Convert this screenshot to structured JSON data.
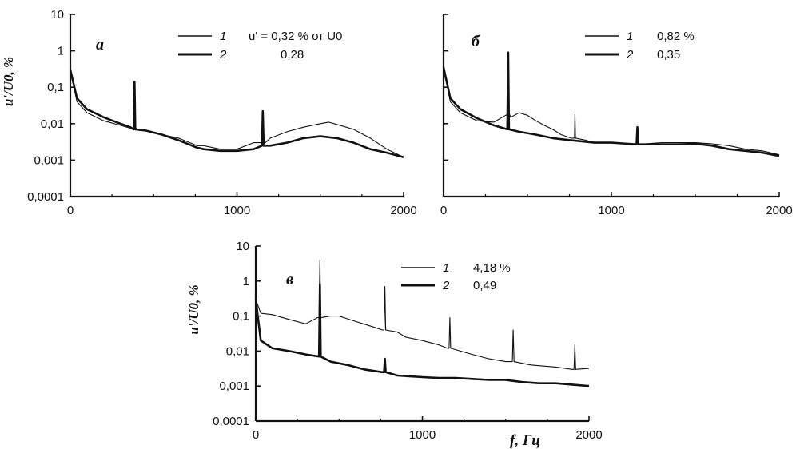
{
  "chart_data": [
    {
      "type": "line",
      "panel": "a",
      "xlim": [
        0,
        2000
      ],
      "ylim": [
        0.0001,
        10
      ],
      "yscale": "log",
      "xticks": [
        "0",
        "1000",
        "2000"
      ],
      "yticks": [
        "10",
        "1",
        "0,1",
        "0,01",
        "0,001",
        "0,0001"
      ],
      "ylabel": "u'/U0, %",
      "xlabel": "",
      "legend": {
        "header": "u' = 0,32 % от U0",
        "rows": [
          {
            "num": "1",
            "value": "u' = 0,32 % от U0"
          },
          {
            "num": "2",
            "value": "0,28"
          }
        ]
      },
      "series": [
        {
          "name": "1",
          "width": "thin",
          "points": [
            [
              0,
              0.3
            ],
            [
              40,
              0.04
            ],
            [
              100,
              0.02
            ],
            [
              200,
              0.012
            ],
            [
              300,
              0.009
            ],
            [
              360,
              0.0075
            ],
            [
              380,
              0.007
            ],
            [
              390,
              0.008
            ],
            [
              400,
              0.007
            ],
            [
              450,
              0.0065
            ],
            [
              550,
              0.005
            ],
            [
              650,
              0.004
            ],
            [
              760,
              0.0025
            ],
            [
              800,
              0.0025
            ],
            [
              900,
              0.002
            ],
            [
              1000,
              0.002
            ],
            [
              1100,
              0.003
            ],
            [
              1150,
              0.003
            ],
            [
              1170,
              0.003
            ],
            [
              1200,
              0.004
            ],
            [
              1300,
              0.006
            ],
            [
              1400,
              0.008
            ],
            [
              1500,
              0.01
            ],
            [
              1550,
              0.011
            ],
            [
              1600,
              0.0095
            ],
            [
              1700,
              0.007
            ],
            [
              1800,
              0.004
            ],
            [
              1900,
              0.002
            ],
            [
              2000,
              0.0012
            ]
          ]
        },
        {
          "name": "2",
          "width": "thick",
          "points": [
            [
              0,
              0.3
            ],
            [
              40,
              0.05
            ],
            [
              100,
              0.025
            ],
            [
              200,
              0.015
            ],
            [
              300,
              0.01
            ],
            [
              360,
              0.008
            ],
            [
              380,
              0.007
            ],
            [
              385,
              0.14
            ],
            [
              390,
              0.007
            ],
            [
              450,
              0.0065
            ],
            [
              550,
              0.005
            ],
            [
              650,
              0.0035
            ],
            [
              760,
              0.0022
            ],
            [
              800,
              0.002
            ],
            [
              900,
              0.0018
            ],
            [
              1000,
              0.0018
            ],
            [
              1100,
              0.002
            ],
            [
              1150,
              0.0025
            ],
            [
              1155,
              0.022
            ],
            [
              1160,
              0.0025
            ],
            [
              1200,
              0.0025
            ],
            [
              1300,
              0.003
            ],
            [
              1400,
              0.004
            ],
            [
              1500,
              0.0045
            ],
            [
              1600,
              0.004
            ],
            [
              1700,
              0.003
            ],
            [
              1800,
              0.002
            ],
            [
              1900,
              0.0016
            ],
            [
              2000,
              0.0012
            ]
          ]
        }
      ]
    },
    {
      "type": "line",
      "panel": "б",
      "xlim": [
        0,
        2000
      ],
      "ylim": [
        0.0001,
        10
      ],
      "yscale": "log",
      "xticks": [
        "0",
        "1000",
        "2000"
      ],
      "yticks": [],
      "ylabel": "",
      "xlabel": "",
      "legend": {
        "rows": [
          {
            "num": "1",
            "value": "0,82 %"
          },
          {
            "num": "2",
            "value": "0,35"
          }
        ]
      },
      "series": [
        {
          "name": "1",
          "width": "thin",
          "points": [
            [
              0,
              0.35
            ],
            [
              40,
              0.04
            ],
            [
              100,
              0.02
            ],
            [
              200,
              0.012
            ],
            [
              300,
              0.011
            ],
            [
              350,
              0.015
            ],
            [
              380,
              0.018
            ],
            [
              390,
              0.02
            ],
            [
              400,
              0.015
            ],
            [
              450,
              0.02
            ],
            [
              500,
              0.017
            ],
            [
              550,
              0.012
            ],
            [
              600,
              0.009
            ],
            [
              650,
              0.007
            ],
            [
              700,
              0.005
            ],
            [
              760,
              0.004
            ],
            [
              780,
              0.004
            ],
            [
              783,
              0.018
            ],
            [
              786,
              0.004
            ],
            [
              850,
              0.0035
            ],
            [
              900,
              0.003
            ],
            [
              1000,
              0.003
            ],
            [
              1100,
              0.0028
            ],
            [
              1200,
              0.0028
            ],
            [
              1300,
              0.003
            ],
            [
              1400,
              0.003
            ],
            [
              1500,
              0.003
            ],
            [
              1600,
              0.0028
            ],
            [
              1700,
              0.0025
            ],
            [
              1800,
              0.002
            ],
            [
              1900,
              0.0018
            ],
            [
              2000,
              0.0014
            ]
          ]
        },
        {
          "name": "2",
          "width": "thick",
          "points": [
            [
              0,
              0.35
            ],
            [
              40,
              0.05
            ],
            [
              100,
              0.025
            ],
            [
              200,
              0.014
            ],
            [
              300,
              0.009
            ],
            [
              380,
              0.007
            ],
            [
              385,
              0.9
            ],
            [
              390,
              0.007
            ],
            [
              450,
              0.006
            ],
            [
              550,
              0.005
            ],
            [
              650,
              0.004
            ],
            [
              760,
              0.0035
            ],
            [
              900,
              0.003
            ],
            [
              1000,
              0.003
            ],
            [
              1100,
              0.0028
            ],
            [
              1150,
              0.0027
            ],
            [
              1155,
              0.008
            ],
            [
              1160,
              0.0027
            ],
            [
              1200,
              0.0027
            ],
            [
              1300,
              0.0027
            ],
            [
              1400,
              0.0027
            ],
            [
              1500,
              0.0028
            ],
            [
              1600,
              0.0025
            ],
            [
              1700,
              0.002
            ],
            [
              1800,
              0.0018
            ],
            [
              1900,
              0.0016
            ],
            [
              2000,
              0.0013
            ]
          ]
        }
      ]
    },
    {
      "type": "line",
      "panel": "в",
      "xlim": [
        0,
        2000
      ],
      "ylim": [
        0.0001,
        10
      ],
      "yscale": "log",
      "xticks": [
        "0",
        "1000",
        "2000"
      ],
      "yticks": [
        "10",
        "1",
        "0,1",
        "0,01",
        "0,001",
        "0,0001"
      ],
      "ylabel": "u'/U0, %",
      "xlabel": "f, Гц",
      "legend": {
        "rows": [
          {
            "num": "1",
            "value": "4,18 %"
          },
          {
            "num": "2",
            "value": "0,49"
          }
        ]
      },
      "series": [
        {
          "name": "1",
          "width": "thin",
          "points": [
            [
              0,
              0.3
            ],
            [
              30,
              0.12
            ],
            [
              100,
              0.11
            ],
            [
              200,
              0.08
            ],
            [
              300,
              0.06
            ],
            [
              370,
              0.09
            ],
            [
              380,
              0.09
            ],
            [
              385,
              4.0
            ],
            [
              390,
              0.09
            ],
            [
              450,
              0.1
            ],
            [
              500,
              0.1
            ],
            [
              600,
              0.07
            ],
            [
              700,
              0.05
            ],
            [
              760,
              0.04
            ],
            [
              770,
              0.04
            ],
            [
              775,
              0.7
            ],
            [
              780,
              0.04
            ],
            [
              850,
              0.035
            ],
            [
              900,
              0.025
            ],
            [
              1000,
              0.02
            ],
            [
              1100,
              0.015
            ],
            [
              1150,
              0.012
            ],
            [
              1160,
              0.012
            ],
            [
              1165,
              0.09
            ],
            [
              1170,
              0.012
            ],
            [
              1300,
              0.008
            ],
            [
              1400,
              0.006
            ],
            [
              1500,
              0.005
            ],
            [
              1540,
              0.005
            ],
            [
              1545,
              0.04
            ],
            [
              1550,
              0.005
            ],
            [
              1650,
              0.004
            ],
            [
              1800,
              0.0035
            ],
            [
              1900,
              0.003
            ],
            [
              1910,
              0.003
            ],
            [
              1915,
              0.015
            ],
            [
              1920,
              0.003
            ],
            [
              2000,
              0.0032
            ]
          ]
        },
        {
          "name": "2",
          "width": "thick",
          "points": [
            [
              0,
              0.3
            ],
            [
              30,
              0.02
            ],
            [
              100,
              0.012
            ],
            [
              200,
              0.01
            ],
            [
              300,
              0.008
            ],
            [
              380,
              0.007
            ],
            [
              385,
              0.8
            ],
            [
              390,
              0.007
            ],
            [
              450,
              0.005
            ],
            [
              550,
              0.004
            ],
            [
              650,
              0.003
            ],
            [
              760,
              0.0025
            ],
            [
              770,
              0.0025
            ],
            [
              775,
              0.006
            ],
            [
              780,
              0.0025
            ],
            [
              850,
              0.002
            ],
            [
              1000,
              0.0018
            ],
            [
              1100,
              0.0017
            ],
            [
              1200,
              0.0017
            ],
            [
              1300,
              0.0016
            ],
            [
              1400,
              0.0015
            ],
            [
              1500,
              0.0015
            ],
            [
              1600,
              0.0013
            ],
            [
              1700,
              0.0012
            ],
            [
              1800,
              0.0012
            ],
            [
              1900,
              0.0011
            ],
            [
              2000,
              0.001
            ]
          ]
        }
      ]
    }
  ]
}
